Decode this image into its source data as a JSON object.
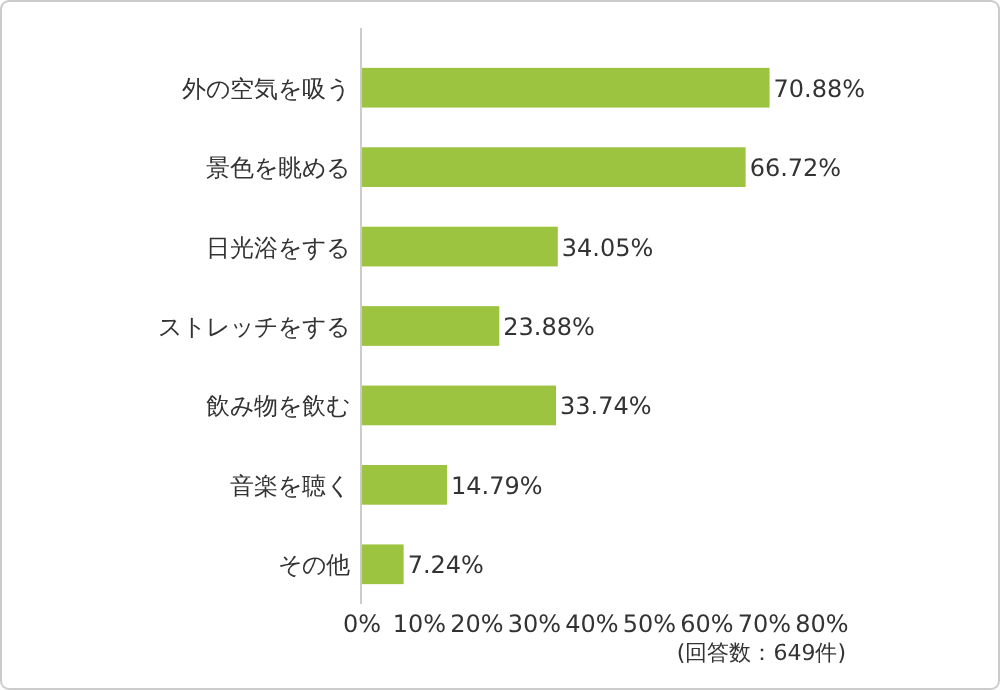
{
  "chart_data": {
    "type": "bar",
    "orientation": "horizontal",
    "categories": [
      "外の空気を吸う",
      "景色を眺める",
      "日光浴をする",
      "ストレッチをする",
      "飲み物を飲む",
      "音楽を聴く",
      "その他"
    ],
    "values": [
      70.88,
      66.72,
      34.05,
      23.88,
      33.74,
      14.79,
      7.24
    ],
    "value_labels": [
      "70.88%",
      "66.72%",
      "34.05%",
      "23.88%",
      "33.74%",
      "14.79%",
      "7.24%"
    ],
    "color": "#9cc440",
    "xlim": [
      0,
      80
    ],
    "xticks": [
      {
        "value": 0,
        "label": "0%"
      },
      {
        "value": 10,
        "label": "10%"
      },
      {
        "value": 20,
        "label": "20%"
      },
      {
        "value": 30,
        "label": "30%"
      },
      {
        "value": 40,
        "label": "40%"
      },
      {
        "value": 50,
        "label": "50%"
      },
      {
        "value": 60,
        "label": "60%"
      },
      {
        "value": 70,
        "label": "70%"
      },
      {
        "value": 80,
        "label": "80%"
      }
    ],
    "annotations": [
      "(回答数：649件)"
    ],
    "grid": false
  }
}
